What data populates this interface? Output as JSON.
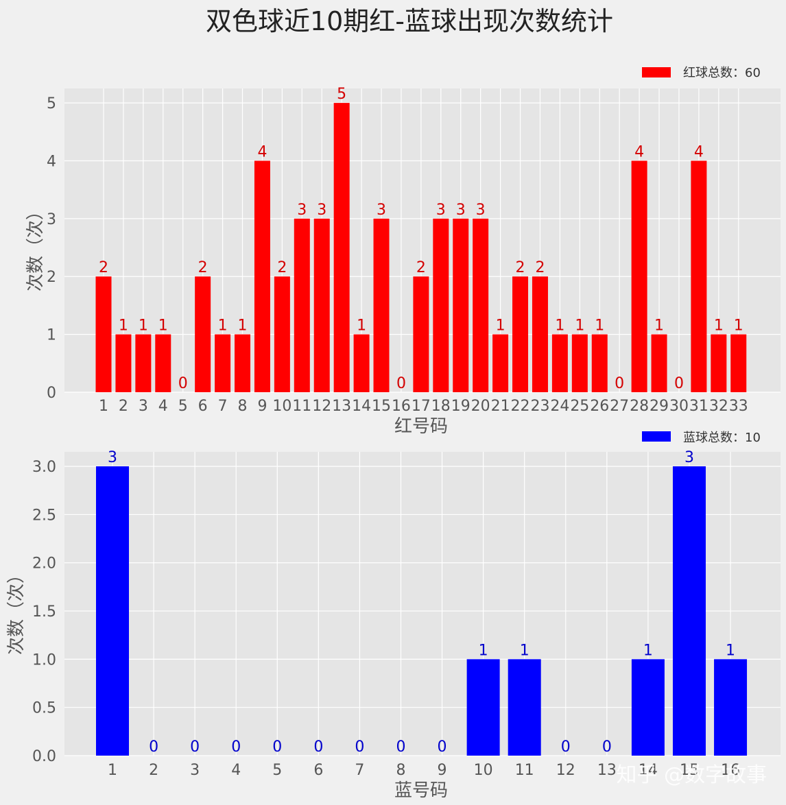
{
  "title": "双色球近10期红-蓝球出现次数统计",
  "watermark": "知乎 @数字故事",
  "colors": {
    "red": "#ff0000",
    "red_label": "#d40000",
    "blue": "#0000ff",
    "blue_label": "#0000cc",
    "plot_bg": "#e5e5e5",
    "grid": "#ffffff"
  },
  "chart_data": [
    {
      "type": "bar",
      "legend": "红球总数：60",
      "legend_position": "top-right",
      "xlabel": "红号码",
      "ylabel": "次数（次）",
      "ylim": [
        0,
        5.25
      ],
      "yticks": [
        0,
        1,
        2,
        3,
        4,
        5
      ],
      "ytick_labels": [
        "0",
        "1",
        "2",
        "3",
        "4",
        "5"
      ],
      "grid": true,
      "categories": [
        "1",
        "2",
        "3",
        "4",
        "5",
        "6",
        "7",
        "8",
        "9",
        "10",
        "11",
        "12",
        "13",
        "14",
        "15",
        "16",
        "17",
        "18",
        "19",
        "20",
        "21",
        "22",
        "23",
        "24",
        "25",
        "26",
        "27",
        "28",
        "29",
        "30",
        "31",
        "32",
        "33"
      ],
      "values": [
        2,
        1,
        1,
        1,
        0,
        2,
        1,
        1,
        4,
        2,
        3,
        3,
        5,
        1,
        3,
        0,
        2,
        3,
        3,
        3,
        1,
        2,
        2,
        1,
        1,
        1,
        0,
        4,
        1,
        0,
        4,
        1,
        1
      ],
      "data_labels": [
        "2",
        "1",
        "1",
        "1",
        "0",
        "2",
        "1",
        "1",
        "4",
        "2",
        "3",
        "3",
        "5",
        "1",
        "3",
        "0",
        "2",
        "3",
        "3",
        "3",
        "1",
        "2",
        "2",
        "1",
        "1",
        "1",
        "0",
        "4",
        "1",
        "0",
        "4",
        "1",
        "1"
      ]
    },
    {
      "type": "bar",
      "legend": "蓝球总数：10",
      "legend_position": "top-right",
      "xlabel": "蓝号码",
      "ylabel": "次数（次）",
      "ylim": [
        0,
        3.15
      ],
      "yticks": [
        0,
        0.5,
        1,
        1.5,
        2,
        2.5,
        3
      ],
      "ytick_labels": [
        "0.0",
        "0.5",
        "1.0",
        "1.5",
        "2.0",
        "2.5",
        "3.0"
      ],
      "grid": true,
      "categories": [
        "1",
        "2",
        "3",
        "4",
        "5",
        "6",
        "7",
        "8",
        "9",
        "10",
        "11",
        "12",
        "13",
        "14",
        "15",
        "16"
      ],
      "values": [
        3,
        0,
        0,
        0,
        0,
        0,
        0,
        0,
        0,
        1,
        1,
        0,
        0,
        1,
        3,
        1
      ],
      "data_labels": [
        "3",
        "0",
        "0",
        "0",
        "0",
        "0",
        "0",
        "0",
        "0",
        "1",
        "1",
        "0",
        "0",
        "1",
        "3",
        "1"
      ]
    }
  ]
}
